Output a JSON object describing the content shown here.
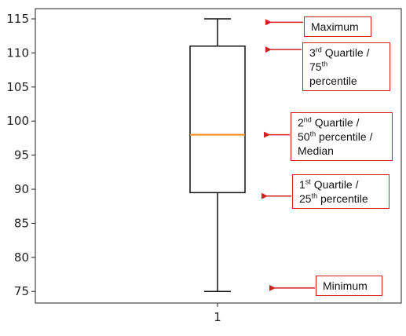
{
  "chart_data": {
    "type": "box",
    "title": "",
    "xlabel": "",
    "ylabel": "",
    "categories": [
      "1"
    ],
    "ylim": [
      73.3,
      116.5
    ],
    "yticks": [
      75,
      80,
      85,
      90,
      95,
      100,
      105,
      110,
      115
    ],
    "box": {
      "min": 75,
      "q1": 89.5,
      "median": 98,
      "q3": 111,
      "max": 115
    },
    "colors": {
      "box": "#111111",
      "median": "#ff8c1a",
      "annotation": "#d62020"
    },
    "annotations": [
      {
        "id": "max",
        "target": 114.5,
        "lines": [
          [
            {
              "t": "Maximum"
            }
          ]
        ]
      },
      {
        "id": "q3",
        "target": 110.5,
        "lines": [
          [
            {
              "t": "3"
            },
            {
              "sup": "rd"
            },
            {
              "t": " Quartile /"
            }
          ],
          [
            {
              "t": "75"
            },
            {
              "sup": "th"
            }
          ],
          [
            {
              "t": "percentile"
            }
          ]
        ]
      },
      {
        "id": "median",
        "target": 98,
        "lines": [
          [
            {
              "t": "2"
            },
            {
              "sup": "nd"
            },
            {
              "t": " Quartile /"
            }
          ],
          [
            {
              "t": "50"
            },
            {
              "sup": "th"
            },
            {
              "t": " percentile /"
            }
          ],
          [
            {
              "t": "Median"
            }
          ]
        ]
      },
      {
        "id": "q1",
        "target": 89,
        "lines": [
          [
            {
              "t": "1"
            },
            {
              "sup": "st"
            },
            {
              "t": " Quartile /"
            }
          ],
          [
            {
              "t": "25"
            },
            {
              "sup": "th"
            },
            {
              "t": " percentile"
            }
          ]
        ]
      },
      {
        "id": "min",
        "target": 75.5,
        "lines": [
          [
            {
              "t": "Minimum"
            }
          ]
        ]
      }
    ]
  }
}
